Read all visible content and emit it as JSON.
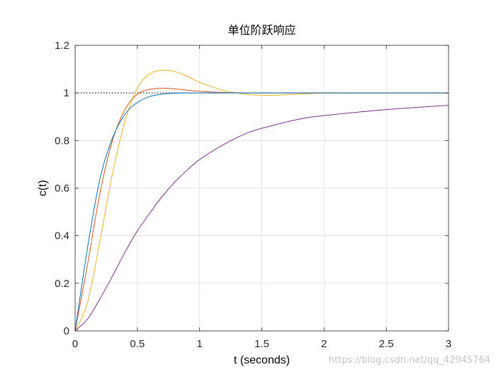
{
  "chart_data": {
    "type": "line",
    "title": "单位阶跃响应",
    "xlabel": "t (seconds)",
    "ylabel": "c(t)",
    "xlim": [
      0,
      3
    ],
    "ylim": [
      0,
      1.2
    ],
    "xticks": [
      0,
      0.5,
      1,
      1.5,
      2,
      2.5,
      3
    ],
    "yticks": [
      0,
      0.2,
      0.4,
      0.6,
      0.8,
      1,
      1.2
    ],
    "xtick_labels": [
      "0",
      "0.5",
      "1",
      "1.5",
      "2",
      "2.5",
      "3"
    ],
    "ytick_labels": [
      "0",
      "0.2",
      "0.4",
      "0.6",
      "0.8",
      "1",
      "1.2"
    ],
    "grid": true,
    "reference_line": {
      "y": 1,
      "style": "dotted",
      "color": "#000000"
    },
    "x": [
      0,
      0.1,
      0.2,
      0.3,
      0.4,
      0.5,
      0.6,
      0.7,
      0.8,
      0.9,
      1.0,
      1.2,
      1.4,
      1.6,
      1.8,
      2.0,
      2.5,
      3.0
    ],
    "series": [
      {
        "color": "#0072BD",
        "values": [
          0,
          0.35,
          0.64,
          0.81,
          0.91,
          0.96,
          0.985,
          0.995,
          0.999,
          1.0,
          1.0,
          1.0,
          1.0,
          1.0,
          1.0,
          1.0,
          1.0,
          1.0
        ]
      },
      {
        "color": "#D95319",
        "values": [
          0,
          0.28,
          0.58,
          0.8,
          0.93,
          0.995,
          1.015,
          1.02,
          1.017,
          1.012,
          1.007,
          1.002,
          1.0,
          1.0,
          1.0,
          1.0,
          1.0,
          1.0
        ]
      },
      {
        "color": "#EDB120",
        "values": [
          0,
          0.12,
          0.38,
          0.66,
          0.88,
          1.02,
          1.08,
          1.095,
          1.09,
          1.07,
          1.045,
          1.01,
          0.993,
          0.99,
          0.995,
          0.999,
          1.0,
          1.0
        ]
      },
      {
        "color": "#7E2F8E",
        "values": [
          0,
          0.05,
          0.135,
          0.23,
          0.33,
          0.42,
          0.495,
          0.565,
          0.625,
          0.675,
          0.72,
          0.785,
          0.835,
          0.865,
          0.89,
          0.905,
          0.93,
          0.948
        ]
      }
    ]
  },
  "watermark": "https://blog.csdn.net/qq_42945764"
}
